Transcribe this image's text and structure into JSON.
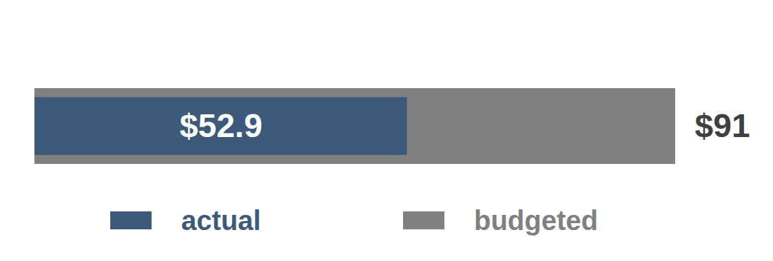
{
  "chart_data": {
    "type": "bar",
    "orientation": "horizontal",
    "stacked": false,
    "categories": [
      null
    ],
    "series": [
      {
        "name": "actual",
        "color": "#3d5a7a",
        "values": [
          52.9
        ],
        "value_labels": [
          "$52.9"
        ]
      },
      {
        "name": "budgeted",
        "color": "#808080",
        "values": [
          91
        ],
        "value_labels": [
          "$91"
        ]
      }
    ],
    "xlim": [
      0,
      91
    ],
    "tick_labels": false,
    "grid": false,
    "data_labels": true,
    "legend": "bottom"
  }
}
